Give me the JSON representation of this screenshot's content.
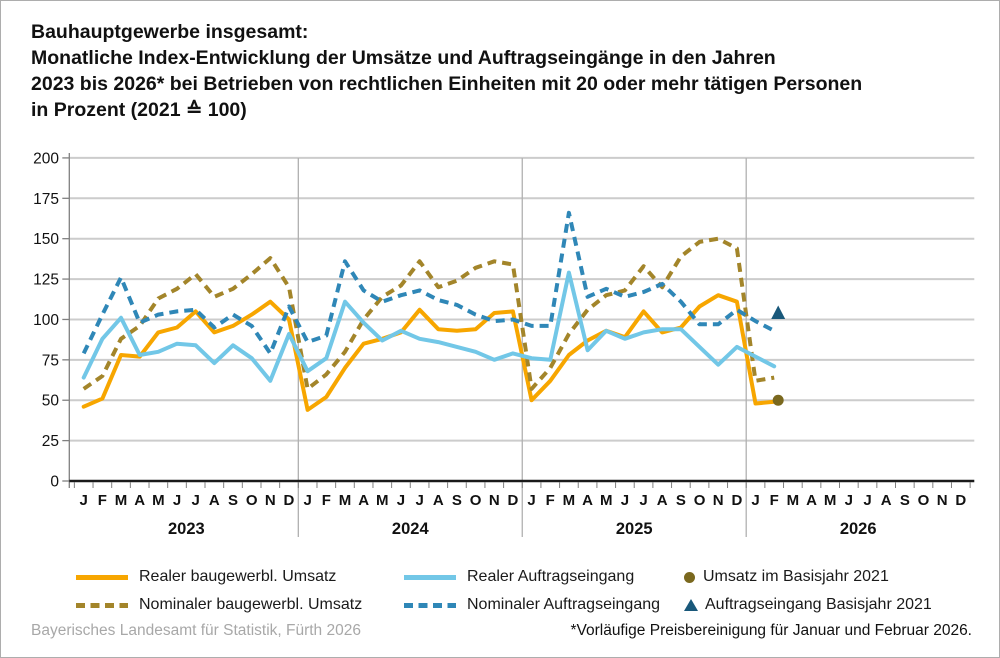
{
  "title": {
    "line1": "Bauhauptgewerbe insgesamt:",
    "line2": "Monatliche Index-Entwicklung der Umsätze und Auftragseingänge in den Jahren",
    "line3": "2023 bis 2026* bei Betrieben von rechtlichen Einheiten mit 20 oder mehr tätigen Personen",
    "line4": "in Prozent (2021 ≙ 100)"
  },
  "chart_data": {
    "type": "line",
    "title": "Monatliche Index-Entwicklung der Umsätze und Auftragseingänge, Bauhauptgewerbe insgesamt, 2023 bis 2026, Index 2021 = 100",
    "ylim": [
      0,
      200
    ],
    "yticks": [
      0,
      25,
      50,
      75,
      100,
      125,
      150,
      175,
      200
    ],
    "grid": true,
    "legend_position": "bottom",
    "month_letters": [
      "J",
      "F",
      "M",
      "A",
      "M",
      "J",
      "J",
      "A",
      "S",
      "O",
      "N",
      "D"
    ],
    "years": [
      "2023",
      "2024",
      "2025",
      "2026"
    ],
    "n_points": 38,
    "series": [
      {
        "name": "Realer baugewerbl. Umsatz",
        "color": "#F7A600",
        "dashed": false,
        "values": [
          46,
          51,
          78,
          77,
          92,
          95,
          105,
          92,
          96,
          103,
          111,
          100,
          44,
          52,
          70,
          85,
          88,
          92,
          106,
          94,
          93,
          94,
          104,
          105,
          50,
          62,
          78,
          87,
          93,
          89,
          105,
          92,
          95,
          108,
          115,
          111,
          48,
          49
        ]
      },
      {
        "name": "Nominaler baugewerbl. Umsatz",
        "color": "#A3852A",
        "dashed": true,
        "values": [
          57,
          65,
          88,
          96,
          113,
          119,
          128,
          114,
          119,
          128,
          138,
          120,
          57,
          66,
          80,
          100,
          114,
          121,
          136,
          120,
          124,
          132,
          136,
          134,
          57,
          70,
          91,
          106,
          115,
          118,
          133,
          120,
          139,
          148,
          150,
          144,
          62,
          64
        ]
      },
      {
        "name": "Realer Auftragseingang",
        "color": "#72C7E7",
        "dashed": false,
        "values": [
          64,
          88,
          101,
          78,
          80,
          85,
          84,
          73,
          84,
          76,
          62,
          91,
          68,
          76,
          111,
          98,
          87,
          93,
          88,
          86,
          83,
          80,
          75,
          79,
          76,
          75,
          129,
          81,
          93,
          88,
          92,
          94,
          94,
          83,
          72,
          83,
          77,
          71
        ]
      },
      {
        "name": "Nominaler Auftragseingang",
        "color": "#2F87B7",
        "dashed": true,
        "values": [
          79,
          103,
          126,
          98,
          103,
          105,
          106,
          95,
          103,
          96,
          79,
          108,
          86,
          90,
          136,
          118,
          111,
          115,
          118,
          112,
          109,
          103,
          99,
          100,
          96,
          96,
          166,
          114,
          119,
          114,
          117,
          122,
          111,
          97,
          97,
          106,
          99,
          93
        ]
      }
    ],
    "markers": [
      {
        "name": "Umsatz im Basisjahr 2021",
        "shape": "circle",
        "color": "#7A681E",
        "value": 50,
        "month_index": 37
      },
      {
        "name": "Auftragseingang Basisjahr 2021",
        "shape": "triangle",
        "color": "#19587A",
        "value": 104,
        "month_index": 37
      }
    ]
  },
  "legend": {
    "items": [
      {
        "label": "Realer baugewerbl. Umsatz",
        "swatch": "solid",
        "color": "#F7A600"
      },
      {
        "label": "Nominaler baugewerbl. Umsatz",
        "swatch": "dashed",
        "color": "#A3852A"
      },
      {
        "label": "Realer Auftragseingang",
        "swatch": "solid",
        "color": "#72C7E7"
      },
      {
        "label": "Nominaler Auftragseingang",
        "swatch": "dashed",
        "color": "#2F87B7"
      },
      {
        "label": "Umsatz im Basisjahr 2021",
        "swatch": "circle",
        "color": "#7A681E"
      },
      {
        "label": "Auftragseingang Basisjahr 2021",
        "swatch": "triangle",
        "color": "#19587A"
      }
    ]
  },
  "footer": {
    "source": "Bayerisches Landesamt für Statistik, Fürth 2026",
    "note": "*Vorläufige Preisbereinigung für Januar und Februar 2026."
  }
}
